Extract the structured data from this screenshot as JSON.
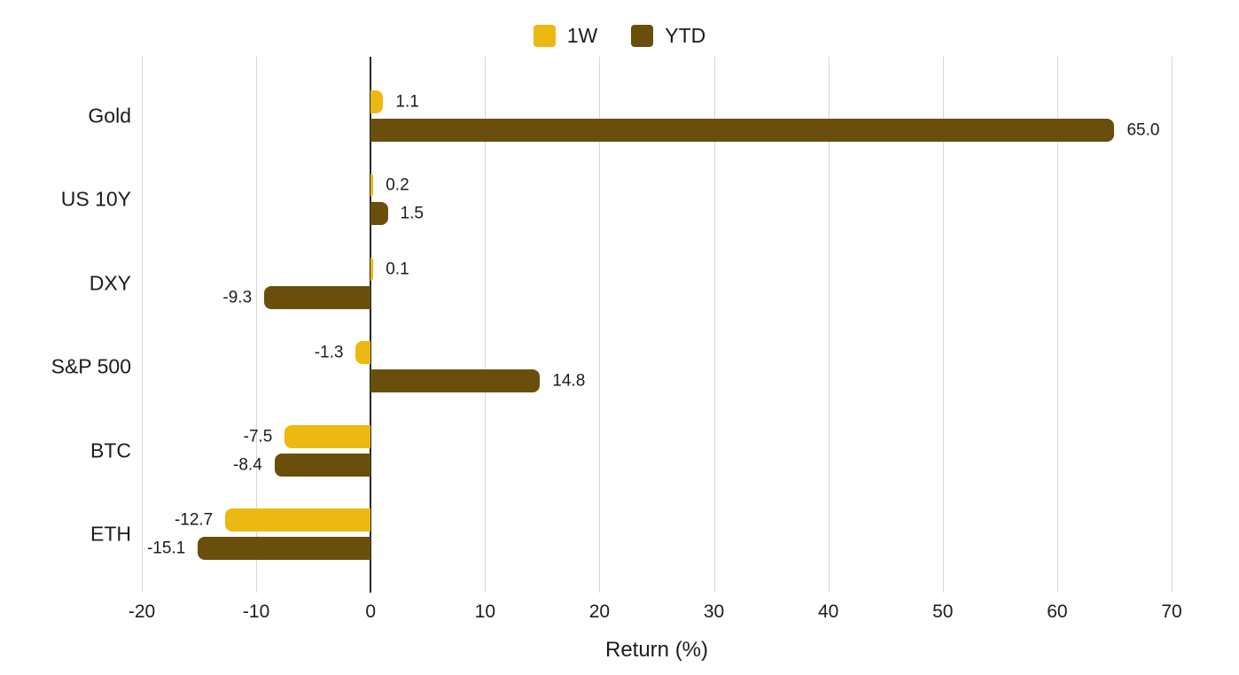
{
  "chart_data": {
    "type": "bar",
    "orientation": "horizontal",
    "title": "",
    "xlabel": "Return (%)",
    "categories": [
      "Gold",
      "US 10Y",
      "DXY",
      "S&P 500",
      "BTC",
      "ETH"
    ],
    "series": [
      {
        "name": "1W",
        "color": "#EDB811",
        "values": [
          1.1,
          0.2,
          0.1,
          -1.3,
          -7.5,
          -12.7
        ],
        "labels": [
          "1.1",
          "0.2",
          "0.1",
          "-1.3",
          "-7.5",
          "-12.7"
        ]
      },
      {
        "name": "YTD",
        "color": "#6A4F0C",
        "values": [
          65.0,
          1.5,
          -9.3,
          14.8,
          -8.4,
          -15.1
        ],
        "labels": [
          "65.0",
          "1.5",
          "-9.3",
          "14.8",
          "-8.4",
          "-15.1"
        ]
      }
    ],
    "xlim": [
      -20,
      70
    ],
    "xticks": [
      -20,
      -10,
      0,
      10,
      20,
      30,
      40,
      50,
      60,
      70
    ],
    "grid": true,
    "legend_position": "top",
    "colors": {
      "grid": "#d7d7d7",
      "zero_axis": "#282828",
      "text": "#1c1c1c",
      "background": "#ffffff"
    }
  }
}
